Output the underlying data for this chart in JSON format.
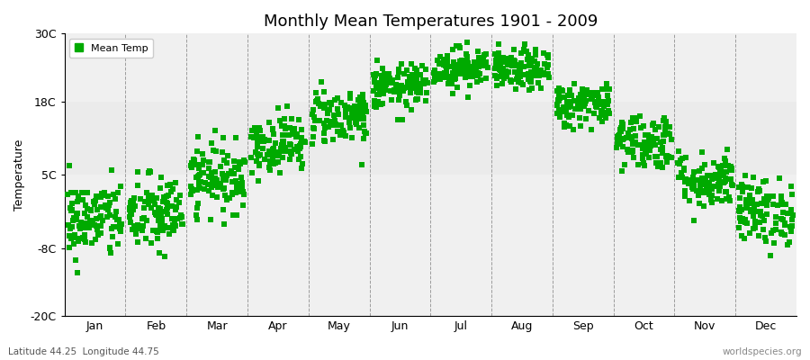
{
  "title": "Monthly Mean Temperatures 1901 - 2009",
  "ylabel": "Temperature",
  "bottom_left_text": "Latitude 44.25  Longitude 44.75",
  "bottom_right_text": "worldspecies.org",
  "ylim": [
    -20,
    30
  ],
  "yticks": [
    -20,
    -8,
    5,
    18,
    30
  ],
  "ytick_labels": [
    "-20C",
    "-8C",
    "5C",
    "18C",
    "30C"
  ],
  "months": [
    "Jan",
    "Feb",
    "Mar",
    "Apr",
    "May",
    "Jun",
    "Jul",
    "Aug",
    "Sep",
    "Oct",
    "Nov",
    "Dec"
  ],
  "monthly_means": [
    -3.0,
    -2.0,
    4.5,
    10.5,
    15.5,
    20.5,
    24.0,
    23.5,
    17.5,
    11.0,
    4.0,
    -1.5
  ],
  "monthly_stds": [
    3.5,
    3.5,
    3.0,
    2.5,
    2.5,
    2.0,
    1.8,
    1.8,
    2.0,
    2.5,
    2.5,
    3.0
  ],
  "n_years": 109,
  "marker_color": "#00aa00",
  "marker_size": 4,
  "bg_color": "#f0f0f0",
  "fig_bg_color": "#ffffff",
  "legend_label": "Mean Temp",
  "title_fontsize": 13,
  "label_fontsize": 9,
  "tick_fontsize": 9
}
